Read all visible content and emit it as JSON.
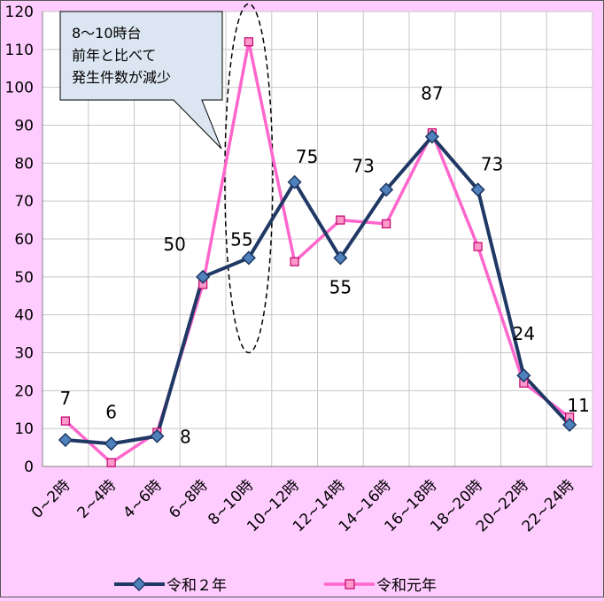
{
  "chart_data": {
    "type": "line",
    "categories": [
      "0~2時",
      "2~4時",
      "4~6時",
      "6~8時",
      "8~10時",
      "10~12時",
      "12~14時",
      "14~16時",
      "16~18時",
      "18~20時",
      "20~22時",
      "22~24時"
    ],
    "series": [
      {
        "name": "令和２年",
        "values": [
          7,
          6,
          8,
          50,
          55,
          75,
          55,
          73,
          87,
          73,
          24,
          11
        ],
        "color": "#1f3864",
        "marker": "diamond"
      },
      {
        "name": "令和元年",
        "values": [
          12,
          1,
          9,
          48,
          112,
          54,
          65,
          64,
          88,
          58,
          22,
          13
        ],
        "color": "#ff66cc",
        "marker": "square"
      }
    ],
    "data_labels": [
      "7",
      "6",
      "8",
      "50",
      "55",
      "75",
      "55",
      "73",
      "87",
      "73",
      "24",
      "11"
    ],
    "ylim": [
      0,
      120
    ],
    "yticks": [
      "0",
      "10",
      "20",
      "30",
      "40",
      "50",
      "60",
      "70",
      "80",
      "90",
      "100",
      "110",
      "120"
    ],
    "grid": true,
    "legend_position": "bottom",
    "annotation": {
      "lines": [
        "8～10時台",
        "前年と比べて",
        "発生件数が減少"
      ],
      "highlight_category": "8~10時"
    },
    "colors": {
      "background": "#ffccff",
      "plot_background": "#ffffff",
      "grid": "#c8c8c8",
      "callout_fill": "#dce6f2"
    }
  }
}
